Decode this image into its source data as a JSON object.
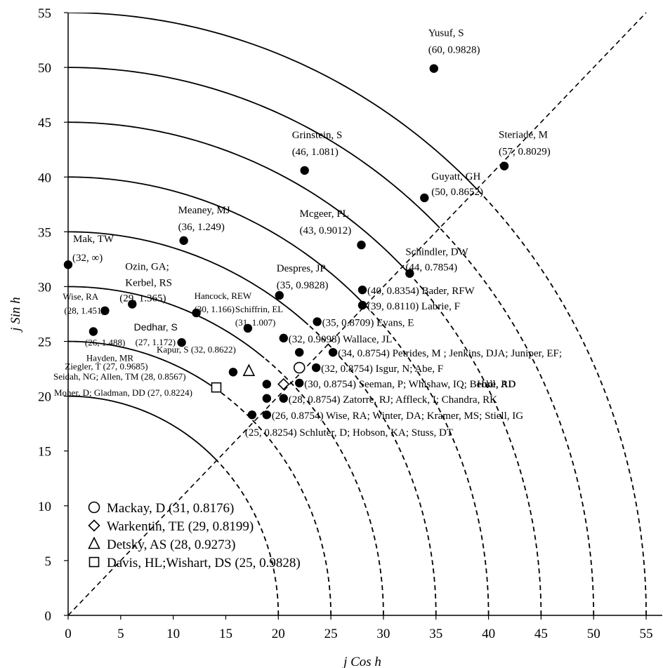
{
  "chart_data": {
    "type": "scatter",
    "xlabel": "j Cos h",
    "ylabel": "j Sin h",
    "xlim": [
      0,
      56
    ],
    "ylim": [
      0,
      55
    ],
    "x_ticks": [
      "0",
      "5",
      "10",
      "15",
      "20",
      "25",
      "30",
      "35",
      "40",
      "45",
      "50",
      "55"
    ],
    "y_ticks": [
      "0",
      "5",
      "10",
      "15",
      "20",
      "25",
      "30",
      "35",
      "40",
      "45",
      "50",
      "55"
    ],
    "grid": false,
    "reference_line": "y = x (dashed)",
    "arcs": [
      {
        "radius": 20,
        "dashed_from": 0.7854
      },
      {
        "radius": 25,
        "dashed_from": 1.0
      },
      {
        "radius": 30,
        "dashed_from": 0.9
      },
      {
        "radius": 35,
        "dashed_from": 0.86
      },
      {
        "radius": 40,
        "dashed_from": 0.7854
      },
      {
        "radius": 45,
        "dashed_from": 0.7854
      },
      {
        "radius": 50,
        "dashed_from": 0.7854
      },
      {
        "radius": 55,
        "dashed_from": 0.7854
      }
    ],
    "points": [
      {
        "x": 34.8,
        "y": 49.9,
        "marker": "filled-circle",
        "label": "Yusuf, S",
        "sublabel": "(60, 0.9828)"
      },
      {
        "x": 41.5,
        "y": 41.0,
        "marker": "filled-circle",
        "label": "Steriade, M",
        "sublabel": "(57, 0.8029)"
      },
      {
        "x": 22.5,
        "y": 40.6,
        "marker": "filled-circle",
        "label": "Grinstein, S",
        "sublabel": "(46, 1.081)"
      },
      {
        "x": 33.9,
        "y": 38.1,
        "marker": "filled-circle",
        "label": "Guyatt, GH",
        "sublabel": "(50, 0.8652)"
      },
      {
        "x": 27.9,
        "y": 33.8,
        "marker": "filled-circle",
        "label": "Mcgeer, PL",
        "sublabel": "(43, 0.9012)"
      },
      {
        "x": 11.0,
        "y": 34.2,
        "marker": "filled-circle",
        "label": "Meaney, MJ",
        "sublabel": "(36, 1.249)"
      },
      {
        "x": 0.0,
        "y": 32.0,
        "marker": "filled-circle",
        "label": "Mak, TW",
        "sublabel": "(32, ∞)"
      },
      {
        "x": 32.5,
        "y": 31.2,
        "marker": "filled-circle",
        "label": "Schindler, DW",
        "sublabel": "(44, 0.7854)"
      },
      {
        "x": 28.0,
        "y": 29.7,
        "marker": "filled-circle",
        "label": "(40, 0.8354) Bader, RFW"
      },
      {
        "x": 20.1,
        "y": 29.2,
        "marker": "filled-circle",
        "label": "Despres, JP",
        "sublabel": "(35, 0.9828)"
      },
      {
        "x": 6.1,
        "y": 28.4,
        "marker": "filled-circle",
        "label": "Ozin, GA;",
        "sublabel": "Kerbel, RS",
        "sublabel2": "(29, 1.365)"
      },
      {
        "x": 28.0,
        "y": 28.3,
        "marker": "filled-circle",
        "label": "(39, 0.8110) Labrie, F"
      },
      {
        "x": 3.5,
        "y": 27.8,
        "marker": "filled-circle",
        "label": "Wise, RA",
        "sublabel": "(28, 1.451)"
      },
      {
        "x": 12.2,
        "y": 27.6,
        "marker": "filled-circle",
        "label": "Hancock, REW",
        "sublabel": "(30, 1.166)"
      },
      {
        "x": 23.7,
        "y": 26.8,
        "marker": "filled-circle",
        "label": "(35, 0.8709) Evans, E"
      },
      {
        "x": 17.1,
        "y": 26.2,
        "marker": "filled-circle",
        "label": "Schiffrin, EL",
        "sublabel": "(31, 1.007)"
      },
      {
        "x": 2.4,
        "y": 25.9,
        "marker": "filled-circle",
        "label": "(26, 1.488)",
        "sublabel": "Hayden, MR"
      },
      {
        "x": 20.5,
        "y": 25.3,
        "marker": "filled-circle",
        "label": "(32, 0.9098) Wallace, JL"
      },
      {
        "x": 10.8,
        "y": 24.9,
        "marker": "filled-circle",
        "label": "Dedhar, S",
        "sublabel": "(27, 1.172)"
      },
      {
        "x": 22.0,
        "y": 24.0,
        "marker": "filled-circle",
        "label": ""
      },
      {
        "x": 25.2,
        "y": 24.0,
        "marker": "filled-circle",
        "label": "(34, 0.8754) Petrides, M    ; Jenkins, DJA; Juniper, EF;",
        "sublabel": "Hull, RD"
      },
      {
        "x": 15.7,
        "y": 22.2,
        "marker": "filled-circle",
        "label": "Kapur, S (32, 0.8622)"
      },
      {
        "x": 23.6,
        "y": 22.6,
        "marker": "filled-circle",
        "label": "(32, 0.8754) Isgur, N; Abe, F"
      },
      {
        "x": 18.9,
        "y": 21.1,
        "marker": "filled-circle",
        "label": ""
      },
      {
        "x": 22.0,
        "y": 21.2,
        "marker": "filled-circle",
        "label": "(30, 0.8754) Seeman, P; Whishaw, IQ; Becke, AD"
      },
      {
        "x": 18.9,
        "y": 19.8,
        "marker": "filled-circle",
        "label": ""
      },
      {
        "x": 20.5,
        "y": 19.8,
        "marker": "filled-circle",
        "label": "(28, 0.8754) Zatorre, RJ; Affleck, I; Chandra, RK"
      },
      {
        "x": 17.5,
        "y": 18.3,
        "marker": "filled-circle",
        "label": ""
      },
      {
        "x": 18.9,
        "y": 18.3,
        "marker": "filled-circle",
        "label": "(26, 0.8754) Wise, RA; Winter, DA; Kramer, MS; Stiell, IG"
      },
      {
        "x": 17.5,
        "y": 18.3,
        "marker": "none",
        "label": "(25, 0.8254) Schluter, D; Hobson, KA; Stuss, DT"
      },
      {
        "x": 22.0,
        "y": 22.6,
        "marker": "open-circle",
        "label": ""
      },
      {
        "x": 20.5,
        "y": 21.1,
        "marker": "open-diamond",
        "label": ""
      },
      {
        "x": 17.2,
        "y": 22.3,
        "marker": "open-triangle",
        "label": "Ziegler, T (27, 0.9685)"
      },
      {
        "x": 14.1,
        "y": 20.8,
        "marker": "open-square",
        "label": "Seidah, NG; Allen, TM (28, 0.8567)",
        "sublabel": "Moher, D; Gladman,       DD (27, 0.8224)"
      }
    ],
    "legend": [
      {
        "marker": "open-circle",
        "text": "Mackay, D (31, 0.8176)"
      },
      {
        "marker": "open-diamond",
        "text": "Warkentin, TE (29, 0.8199)"
      },
      {
        "marker": "open-triangle",
        "text": "Detsky, AS (28, 0.9273)"
      },
      {
        "marker": "open-square",
        "text": "Davis, HL;Wishart, DS  (25, 0.9828)"
      }
    ],
    "legend_position": "bottom-left"
  }
}
